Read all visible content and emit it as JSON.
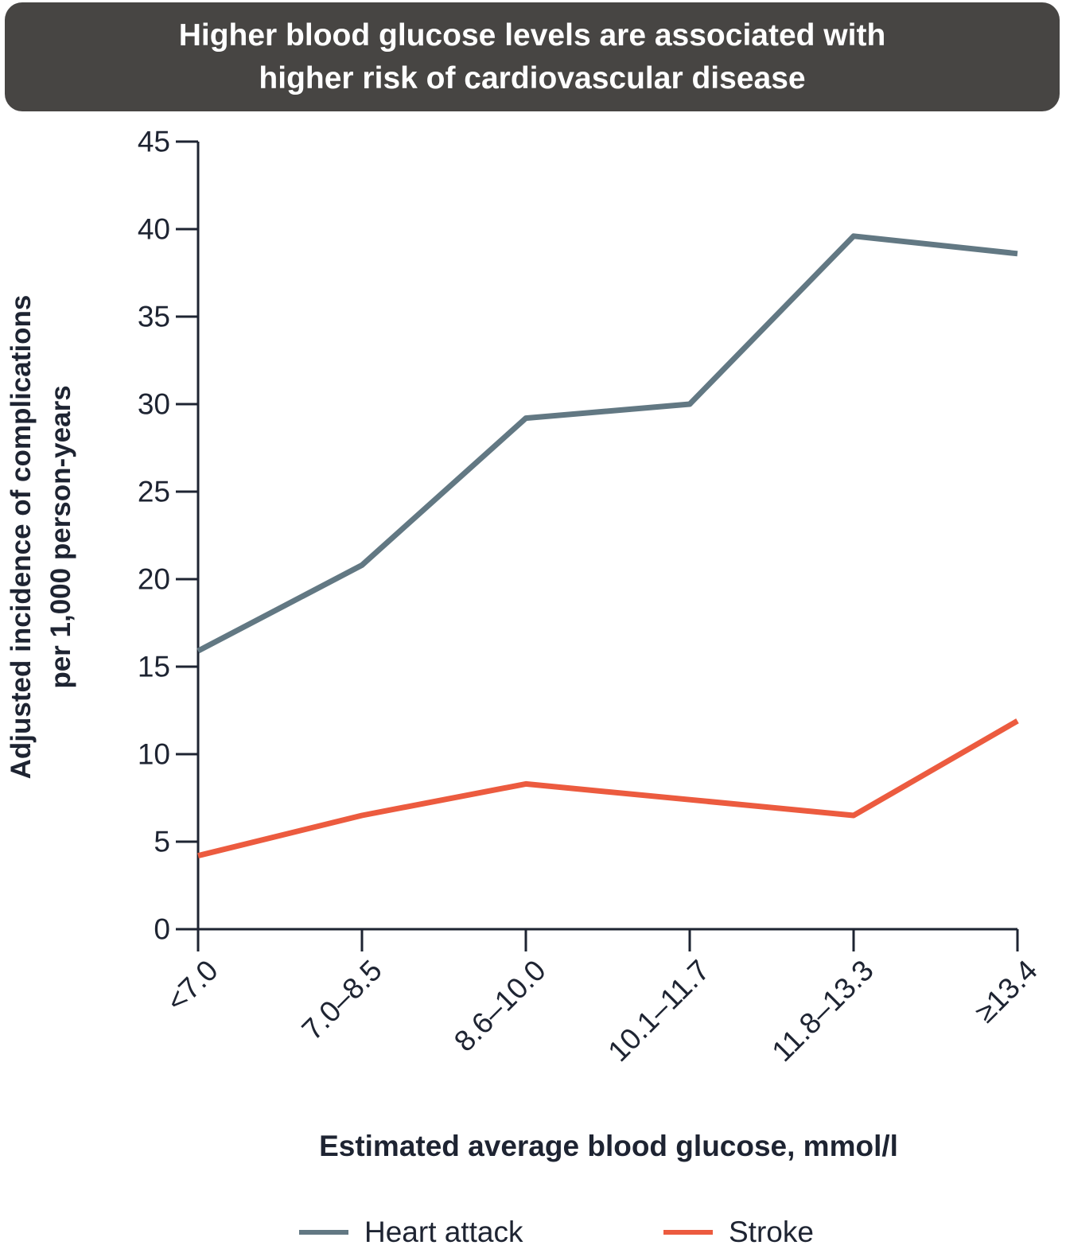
{
  "chart_data": {
    "type": "line",
    "title": "Higher blood glucose levels are associated with higher risk of cardiovascular disease",
    "title_lines": [
      "Higher blood glucose levels are associated with",
      "higher risk of cardiovascular disease"
    ],
    "xlabel": "Estimated average blood glucose, mmol/l",
    "ylabel": "Adjusted incidence of complications per 1,000 person-years",
    "ylabel_lines": [
      "Adjusted incidence of complications",
      "per 1,000 person-years"
    ],
    "categories": [
      "<7.0",
      "7.0–8.5",
      "8.6–10.0",
      "10.1–11.7",
      "11.8–13.3",
      "≥13.4"
    ],
    "ylim": [
      0,
      45
    ],
    "yticks": [
      0,
      5,
      10,
      15,
      20,
      25,
      30,
      35,
      40,
      45
    ],
    "series": [
      {
        "name": "Heart attack",
        "color": "#627883",
        "values": [
          15.9,
          20.8,
          29.2,
          30.0,
          39.6,
          38.6
        ]
      },
      {
        "name": "Stroke",
        "color": "#ec5b3f",
        "values": [
          4.2,
          6.5,
          8.3,
          7.4,
          6.5,
          11.9
        ]
      }
    ],
    "grid": false,
    "legend_position": "bottom"
  }
}
